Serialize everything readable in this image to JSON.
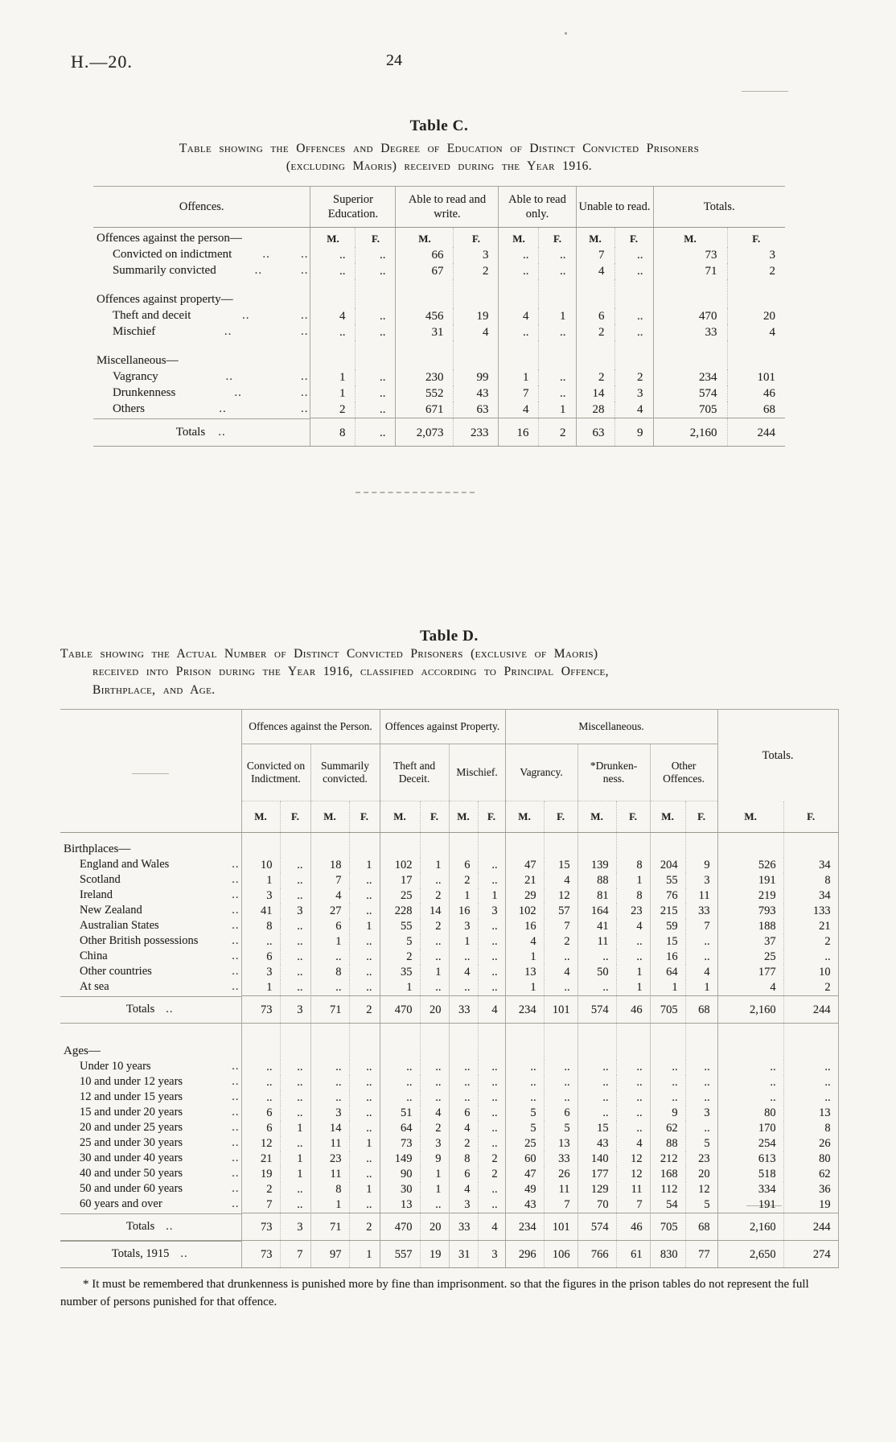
{
  "page": {
    "report_code": "H.—20.",
    "page_number": "24",
    "dots": ".."
  },
  "tableC": {
    "title": "Table C.",
    "caption_lines": [
      "Table showing the Offences and Degree of Education of Distinct Convicted Prisoners",
      "(excluding Maoris) received during the Year 1916."
    ],
    "label_header": "Offences.",
    "group_headers": [
      "Superior Education.",
      "Able to read and write.",
      "Able to read only.",
      "Unable to read.",
      "Totals."
    ],
    "mf": [
      "M.",
      "F."
    ],
    "rows": [
      {
        "type": "group-mf",
        "label": "Offences against the person—"
      },
      {
        "type": "item",
        "label": "Convicted on indictment",
        "values": [
          "..",
          "..",
          "66",
          "3",
          "..",
          "..",
          "7",
          "..",
          "73",
          "3"
        ]
      },
      {
        "type": "item",
        "label": "Summarily convicted",
        "values": [
          "..",
          "..",
          "67",
          "2",
          "..",
          "..",
          "4",
          "..",
          "71",
          "2"
        ]
      },
      {
        "type": "group",
        "label": "Offences against property—",
        "gap": true
      },
      {
        "type": "item",
        "label": "Theft and deceit",
        "values": [
          "4",
          "..",
          "456",
          "19",
          "4",
          "1",
          "6",
          "..",
          "470",
          "20"
        ]
      },
      {
        "type": "item",
        "label": "Mischief",
        "values": [
          "..",
          "..",
          "31",
          "4",
          "..",
          "..",
          "2",
          "..",
          "33",
          "4"
        ]
      },
      {
        "type": "group",
        "label": "Miscellaneous—",
        "gap": true
      },
      {
        "type": "item",
        "label": "Vagrancy",
        "values": [
          "1",
          "..",
          "230",
          "99",
          "1",
          "..",
          "2",
          "2",
          "234",
          "101"
        ]
      },
      {
        "type": "item",
        "label": "Drunkenness",
        "values": [
          "1",
          "..",
          "552",
          "43",
          "7",
          "..",
          "14",
          "3",
          "574",
          "46"
        ]
      },
      {
        "type": "item",
        "label": "Others",
        "values": [
          "2",
          "..",
          "671",
          "63",
          "4",
          "1",
          "28",
          "4",
          "705",
          "68"
        ]
      },
      {
        "type": "total",
        "label": "Totals",
        "values": [
          "8",
          "..",
          "2,073",
          "233",
          "16",
          "2",
          "63",
          "9",
          "2,160",
          "244"
        ]
      }
    ]
  },
  "tableD": {
    "title": "Table D.",
    "caption_lines": [
      "Table showing the Actual Number of Distinct Convicted Prisoners (exclusive of Maoris)",
      "received into Prison during the Year 1916, classified according to Principal Offence,",
      "Birthplace, and Age."
    ],
    "group_headers": [
      "Offences against the Person.",
      "Offences against Property.",
      "Miscellaneous."
    ],
    "totals_header": "Totals.",
    "sub_headers": [
      "Convicted on Indictment.",
      "Summarily convicted.",
      "Theft and Deceit.",
      "Mischief.",
      "Vagrancy.",
      "*Drunken-ness.",
      "Other Offences."
    ],
    "mf": [
      "M.",
      "F."
    ],
    "sections": [
      {
        "heading": "Birthplaces—",
        "rows": [
          {
            "label": "England and Wales",
            "values": [
              "10",
              "..",
              "18",
              "1",
              "102",
              "1",
              "6",
              "..",
              "47",
              "15",
              "139",
              "8",
              "204",
              "9",
              "526",
              "34"
            ]
          },
          {
            "label": "Scotland",
            "values": [
              "1",
              "..",
              "7",
              "..",
              "17",
              "..",
              "2",
              "..",
              "21",
              "4",
              "88",
              "1",
              "55",
              "3",
              "191",
              "8"
            ]
          },
          {
            "label": "Ireland",
            "values": [
              "3",
              "..",
              "4",
              "..",
              "25",
              "2",
              "1",
              "1",
              "29",
              "12",
              "81",
              "8",
              "76",
              "11",
              "219",
              "34"
            ]
          },
          {
            "label": "New Zealand",
            "values": [
              "41",
              "3",
              "27",
              "..",
              "228",
              "14",
              "16",
              "3",
              "102",
              "57",
              "164",
              "23",
              "215",
              "33",
              "793",
              "133"
            ]
          },
          {
            "label": "Australian States",
            "values": [
              "8",
              "..",
              "6",
              "1",
              "55",
              "2",
              "3",
              "..",
              "16",
              "7",
              "41",
              "4",
              "59",
              "7",
              "188",
              "21"
            ]
          },
          {
            "label": "Other British possessions",
            "values": [
              "..",
              "..",
              "1",
              "..",
              "5",
              "..",
              "1",
              "..",
              "4",
              "2",
              "11",
              "..",
              "15",
              "..",
              "37",
              "2"
            ]
          },
          {
            "label": "China",
            "values": [
              "6",
              "..",
              "..",
              "..",
              "2",
              "..",
              "..",
              "..",
              "1",
              "..",
              "..",
              "..",
              "16",
              "..",
              "25",
              ".."
            ]
          },
          {
            "label": "Other countries",
            "values": [
              "3",
              "..",
              "8",
              "..",
              "35",
              "1",
              "4",
              "..",
              "13",
              "4",
              "50",
              "1",
              "64",
              "4",
              "177",
              "10"
            ]
          },
          {
            "label": "At sea",
            "values": [
              "1",
              "..",
              "..",
              "..",
              "1",
              "..",
              "..",
              "..",
              "1",
              "..",
              "..",
              "1",
              "1",
              "1",
              "4",
              "2"
            ]
          }
        ],
        "totals": [
          {
            "label": "Totals",
            "values": [
              "73",
              "3",
              "71",
              "2",
              "470",
              "20",
              "33",
              "4",
              "234",
              "101",
              "574",
              "46",
              "705",
              "68",
              "2,160",
              "244"
            ]
          }
        ]
      },
      {
        "heading": "Ages—",
        "rows": [
          {
            "label": "Under 10 years",
            "values": [
              "..",
              "..",
              "..",
              "..",
              "..",
              "..",
              "..",
              "..",
              "..",
              "..",
              "..",
              "..",
              "..",
              "..",
              "..",
              ".."
            ]
          },
          {
            "label": "10 and under 12 years",
            "values": [
              "..",
              "..",
              "..",
              "..",
              "..",
              "..",
              "..",
              "..",
              "..",
              "..",
              "..",
              "..",
              "..",
              "..",
              "..",
              ".."
            ]
          },
          {
            "label": "12 and under 15 years",
            "values": [
              "..",
              "..",
              "..",
              "..",
              "..",
              "..",
              "..",
              "..",
              "..",
              "..",
              "..",
              "..",
              "..",
              "..",
              "..",
              ".."
            ]
          },
          {
            "label": "15 and under 20 years",
            "values": [
              "6",
              "..",
              "3",
              "..",
              "51",
              "4",
              "6",
              "..",
              "5",
              "6",
              "..",
              "..",
              "9",
              "3",
              "80",
              "13"
            ]
          },
          {
            "label": "20 and under 25 years",
            "values": [
              "6",
              "1",
              "14",
              "..",
              "64",
              "2",
              "4",
              "..",
              "5",
              "5",
              "15",
              "..",
              "62",
              "..",
              "170",
              "8"
            ]
          },
          {
            "label": "25 and under 30 years",
            "values": [
              "12",
              "..",
              "11",
              "1",
              "73",
              "3",
              "2",
              "..",
              "25",
              "13",
              "43",
              "4",
              "88",
              "5",
              "254",
              "26"
            ]
          },
          {
            "label": "30 and under 40 years",
            "values": [
              "21",
              "1",
              "23",
              "..",
              "149",
              "9",
              "8",
              "2",
              "60",
              "33",
              "140",
              "12",
              "212",
              "23",
              "613",
              "80"
            ]
          },
          {
            "label": "40 and under 50 years",
            "values": [
              "19",
              "1",
              "11",
              "..",
              "90",
              "1",
              "6",
              "2",
              "47",
              "26",
              "177",
              "12",
              "168",
              "20",
              "518",
              "62"
            ]
          },
          {
            "label": "50 and under 60 years",
            "values": [
              "2",
              "..",
              "8",
              "1",
              "30",
              "1",
              "4",
              "..",
              "49",
              "11",
              "129",
              "11",
              "112",
              "12",
              "334",
              "36"
            ]
          },
          {
            "label": "60 years and over",
            "values": [
              "7",
              "..",
              "1",
              "..",
              "13",
              "..",
              "3",
              "..",
              "43",
              "7",
              "70",
              "7",
              "54",
              "5",
              "191",
              "19"
            ]
          }
        ],
        "totals": [
          {
            "label": "Totals",
            "values": [
              "73",
              "3",
              "71",
              "2",
              "470",
              "20",
              "33",
              "4",
              "234",
              "101",
              "574",
              "46",
              "705",
              "68",
              "2,160",
              "244"
            ]
          },
          {
            "label": "Totals, 1915",
            "values": [
              "73",
              "7",
              "97",
              "1",
              "557",
              "19",
              "31",
              "3",
              "296",
              "106",
              "766",
              "61",
              "830",
              "77",
              "2,650",
              "274"
            ]
          }
        ]
      }
    ],
    "footnote": "* It must be remembered that drunkenness is punished more by fine than imprisonment. so that the figures in the prison tables do not represent the full number of persons punished for that offence."
  }
}
